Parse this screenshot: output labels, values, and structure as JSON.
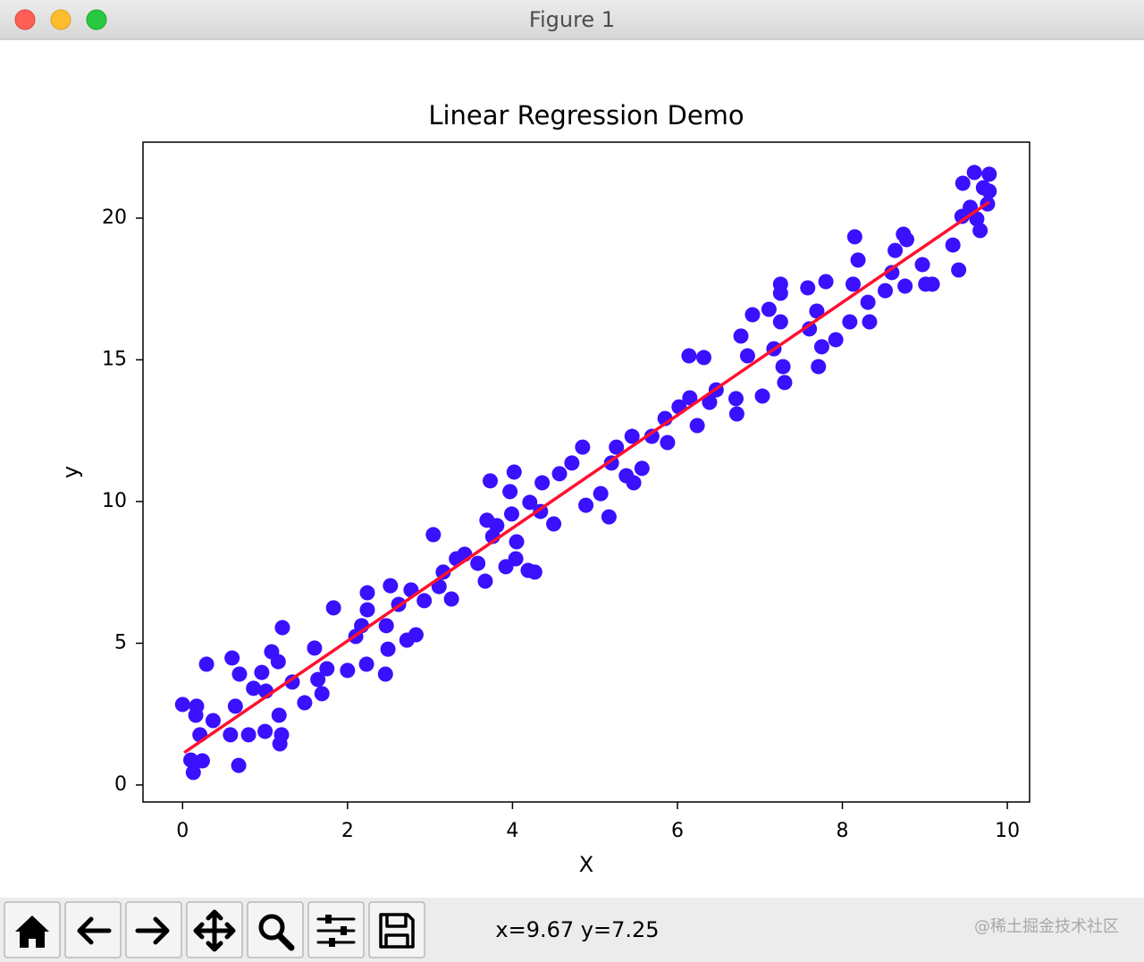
{
  "window": {
    "title": "Figure 1",
    "status": "x=9.67 y=7.25",
    "watermark": "@稀土掘金技术社区"
  },
  "chart_data": {
    "type": "scatter",
    "title": "Linear Regression Demo",
    "xlabel": "X",
    "ylabel": "y",
    "xlim": [
      -0.48,
      10.27
    ],
    "ylim": [
      -0.6,
      22.68
    ],
    "xticks": [
      0,
      2,
      4,
      6,
      8,
      10
    ],
    "yticks": [
      0,
      5,
      10,
      15,
      20
    ],
    "color": "#3a10ff",
    "x": [
      0,
      0.13,
      0.1,
      0.17,
      0.16,
      0.21,
      0.24,
      0.29,
      0.37,
      0.6,
      0.58,
      0.68,
      0.69,
      0.64,
      0.8,
      0.86,
      0.96,
      1.01,
      1.0,
      1.08,
      1.16,
      1.17,
      1.18,
      1.21,
      1.2,
      1.33,
      1.48,
      1.6,
      1.64,
      1.69,
      1.75,
      1.83,
      2.0,
      2.1,
      2.17,
      2.24,
      2.24,
      2.23,
      2.46,
      2.47,
      2.49,
      2.52,
      2.62,
      2.72,
      2.77,
      2.83,
      2.93,
      3.04,
      3.11,
      3.16,
      3.26,
      3.32,
      3.42,
      3.58,
      3.67,
      3.73,
      3.69,
      3.76,
      3.81,
      3.92,
      3.97,
      4.02,
      3.99,
      4.05,
      4.04,
      4.19,
      4.27,
      4.21,
      4.36,
      4.34,
      4.5,
      4.57,
      4.72,
      4.85,
      4.89,
      5.07,
      5.17,
      5.2,
      5.26,
      5.38,
      5.45,
      5.47,
      5.57,
      5.69,
      5.85,
      5.88,
      6.02,
      6.15,
      6.14,
      6.24,
      6.32,
      6.39,
      6.47,
      6.71,
      6.72,
      6.77,
      6.85,
      6.91,
      7.03,
      7.11,
      7.17,
      7.25,
      7.25,
      7.28,
      7.3,
      7.25,
      7.58,
      7.6,
      7.69,
      7.71,
      7.75,
      7.8,
      7.92,
      8.09,
      8.15,
      8.13,
      8.19,
      8.31,
      8.33,
      8.52,
      8.6,
      8.64,
      8.74,
      8.76,
      8.78,
      8.97,
      9.01,
      9.09,
      9.34,
      9.41,
      9.45,
      9.46,
      9.6,
      9.63,
      9.67,
      9.71,
      9.78,
      9.76,
      9.55,
      9.78
    ],
    "values": [
      2.84,
      0.44,
      0.88,
      2.78,
      2.46,
      1.77,
      0.85,
      4.26,
      2.27,
      4.48,
      1.77,
      0.69,
      3.91,
      2.78,
      1.77,
      3.41,
      3.97,
      3.31,
      1.89,
      4.7,
      4.35,
      2.46,
      1.45,
      5.55,
      1.77,
      3.63,
      2.9,
      4.83,
      3.72,
      3.22,
      4.1,
      6.25,
      4.04,
      5.24,
      5.62,
      6.18,
      6.78,
      4.26,
      3.91,
      5.62,
      4.79,
      7.03,
      6.37,
      5.11,
      6.88,
      5.3,
      6.5,
      8.83,
      7.0,
      7.51,
      6.56,
      7.98,
      8.14,
      7.82,
      7.19,
      10.73,
      9.34,
      8.77,
      9.15,
      7.7,
      10.35,
      11.04,
      9.56,
      8.58,
      7.98,
      7.57,
      7.51,
      9.97,
      10.66,
      9.65,
      9.21,
      10.98,
      11.36,
      11.92,
      9.87,
      10.28,
      9.46,
      11.36,
      11.92,
      10.91,
      12.3,
      10.66,
      11.17,
      12.3,
      12.93,
      12.08,
      13.34,
      13.66,
      15.14,
      12.68,
      15.08,
      13.5,
      13.94,
      13.63,
      13.09,
      15.84,
      15.14,
      16.59,
      13.72,
      16.78,
      15.39,
      17.67,
      17.35,
      14.76,
      14.2,
      16.34,
      17.54,
      16.09,
      16.72,
      14.76,
      15.46,
      17.76,
      15.71,
      16.34,
      19.34,
      17.67,
      18.52,
      17.03,
      16.34,
      17.44,
      18.08,
      18.86,
      19.43,
      17.6,
      19.24,
      18.36,
      17.67,
      17.67,
      19.05,
      18.17,
      20.06,
      21.23,
      21.61,
      19.97,
      19.56,
      21.07,
      21.55,
      20.5,
      20.38,
      20.95
    ],
    "fit_line": {
      "x": [
        0.02,
        9.78
      ],
      "values": [
        1.14,
        20.57
      ],
      "color": "#ff1030"
    }
  }
}
